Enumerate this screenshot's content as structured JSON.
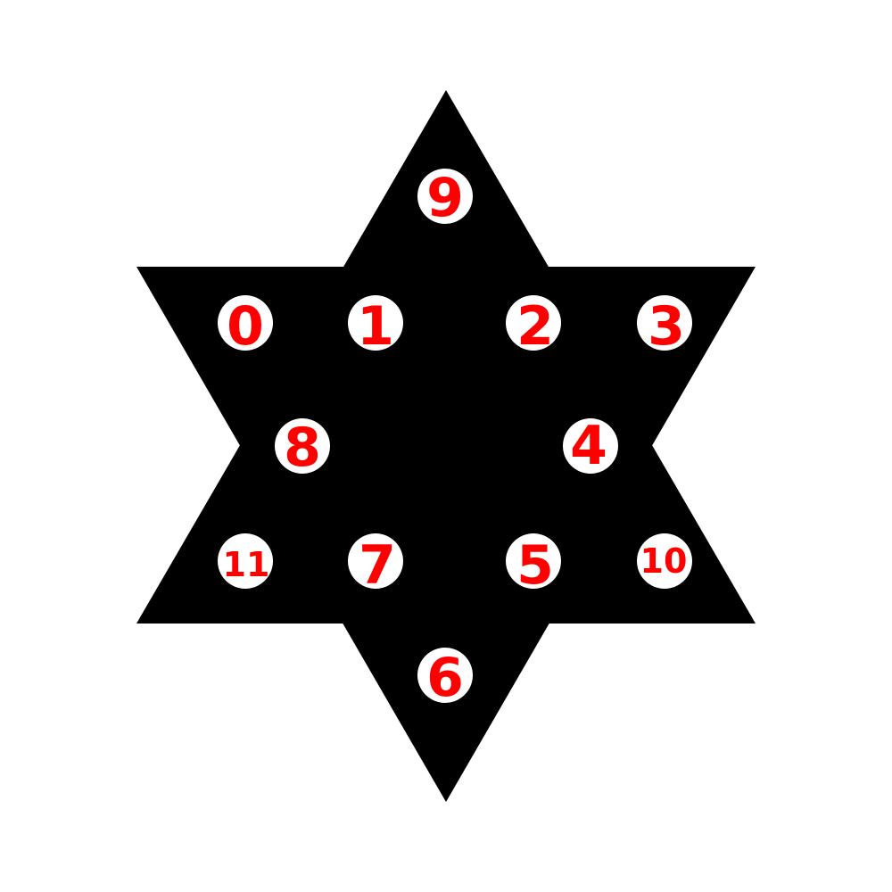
{
  "figure": {
    "shape": "hexagram",
    "colors": {
      "background": "#ffffff",
      "star": "#000000",
      "node_fill": "#ffffff",
      "label": "#ff0000"
    }
  },
  "nodes": [
    {
      "id": "node-0",
      "label": "0"
    },
    {
      "id": "node-1",
      "label": "1"
    },
    {
      "id": "node-2",
      "label": "2"
    },
    {
      "id": "node-3",
      "label": "3"
    },
    {
      "id": "node-4",
      "label": "4"
    },
    {
      "id": "node-5",
      "label": "5"
    },
    {
      "id": "node-6",
      "label": "6"
    },
    {
      "id": "node-7",
      "label": "7"
    },
    {
      "id": "node-8",
      "label": "8"
    },
    {
      "id": "node-9",
      "label": "9"
    },
    {
      "id": "node-10",
      "label": "10"
    },
    {
      "id": "node-11",
      "label": "11"
    }
  ]
}
